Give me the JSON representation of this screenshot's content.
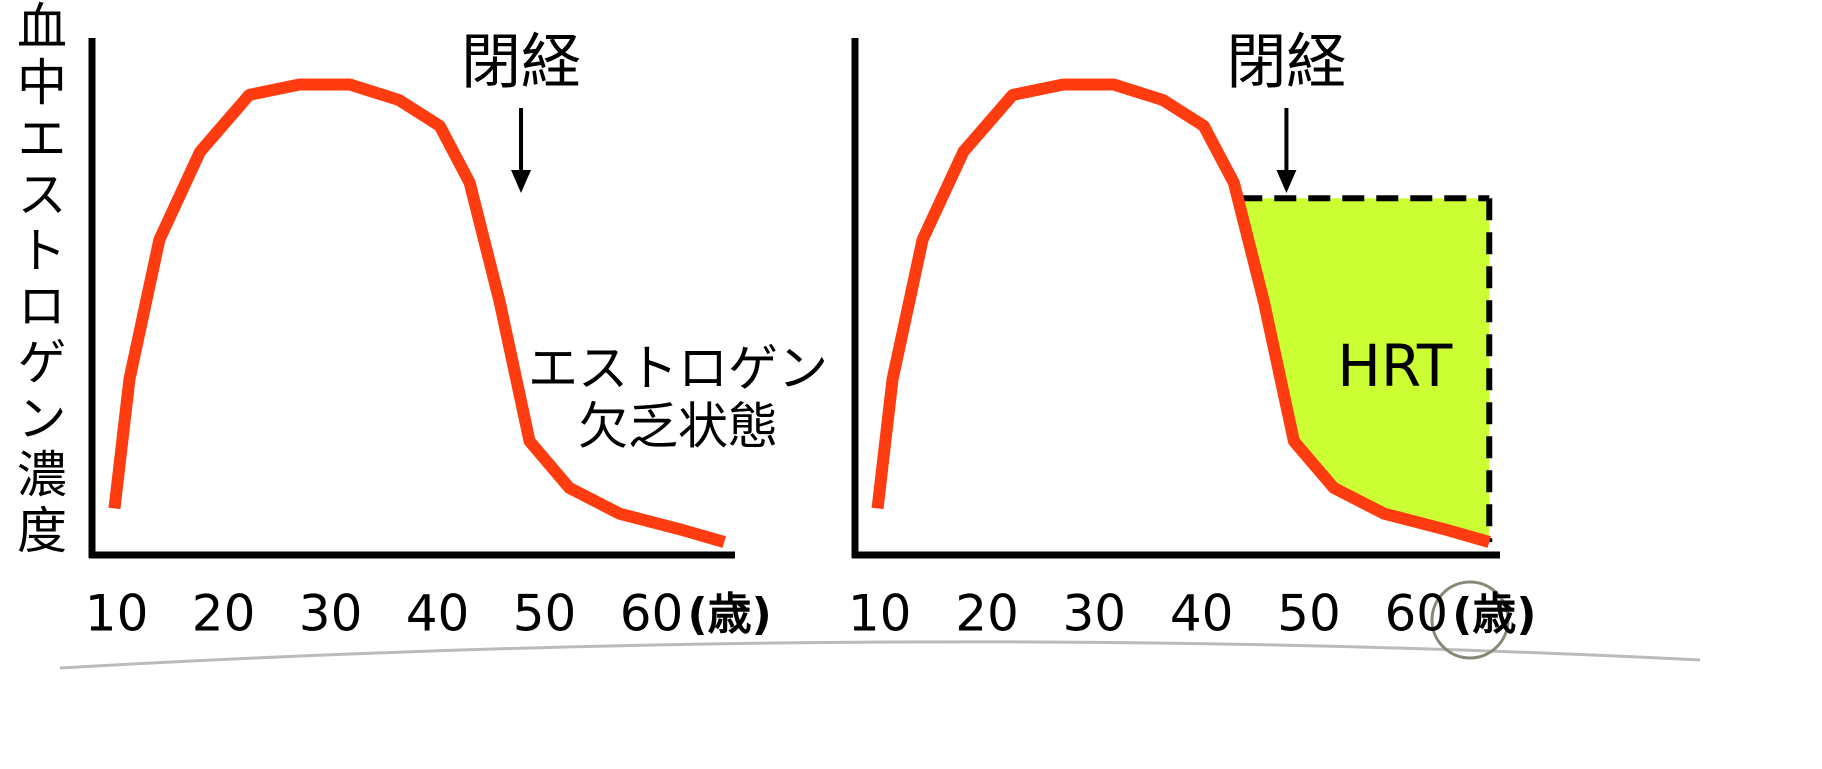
{
  "chart_data": [
    {
      "type": "line",
      "ylabel": "血中エストロゲン濃度",
      "xlabel": "(歳)",
      "x": [
        9.8,
        11.2,
        14,
        17.8,
        22.4,
        27.1,
        31.8,
        36.4,
        40.2,
        43,
        45.8,
        48.6,
        52.3,
        57,
        62.6,
        66.8
      ],
      "values": [
        9,
        34,
        61,
        78,
        89,
        91,
        91,
        88,
        83,
        72,
        49,
        22,
        13,
        8,
        5,
        2.5
      ],
      "color": "#ff3c0f",
      "xlim": [
        7.7,
        67.8
      ],
      "ylim": [
        0,
        100
      ],
      "xticks": [
        10,
        20,
        30,
        40,
        50,
        60
      ],
      "menopause": {
        "label": "閉経",
        "x": 47.8
      },
      "annotation": [
        "エストロゲン",
        "欠乏状態"
      ]
    },
    {
      "type": "line",
      "xlabel": "(歳)",
      "x": [
        9.8,
        11.2,
        14,
        17.8,
        22.4,
        27.1,
        31.8,
        36.4,
        40.2,
        43,
        45.8,
        48.6,
        52.3,
        57,
        62.6,
        66.8
      ],
      "values": [
        9,
        34,
        61,
        78,
        89,
        91,
        91,
        88,
        83,
        72,
        49,
        22,
        13,
        8,
        5,
        2.5
      ],
      "color": "#ff3c0f",
      "xlim": [
        7.7,
        67.8
      ],
      "ylim": [
        0,
        100
      ],
      "xticks": [
        10,
        20,
        30,
        40,
        50,
        60
      ],
      "menopause": {
        "label": "閉経",
        "x": 47.9
      },
      "hrt": {
        "label": "HRT",
        "start": 43.6,
        "level": 69,
        "color": "#ccff33"
      }
    }
  ]
}
